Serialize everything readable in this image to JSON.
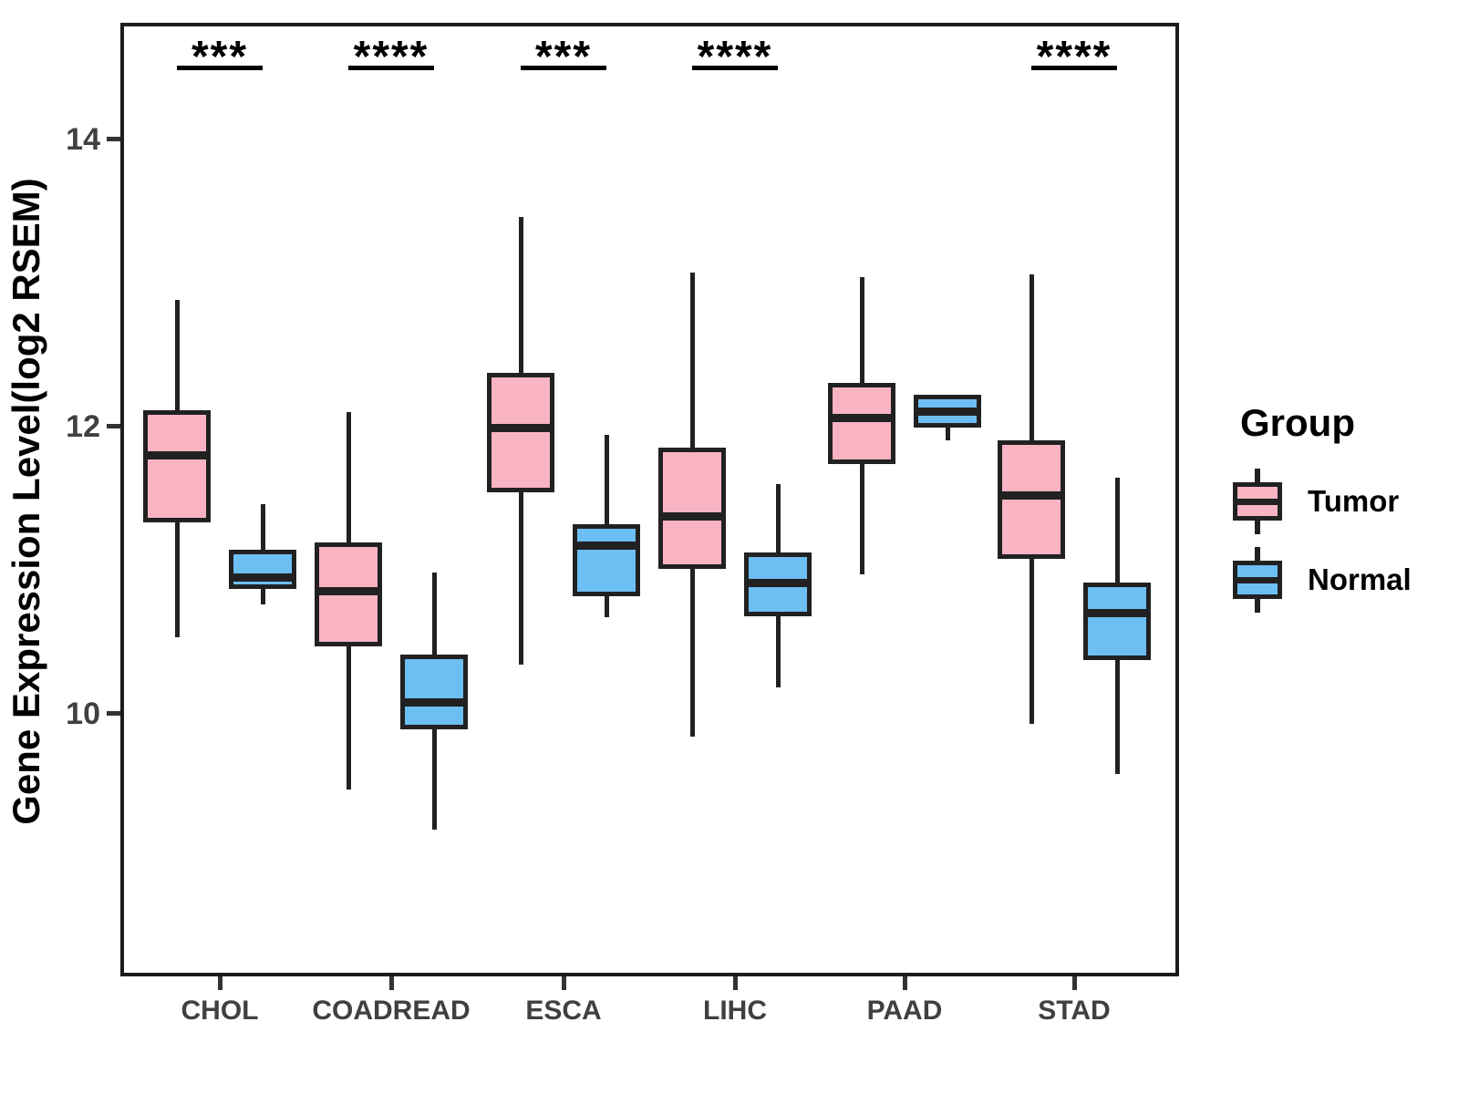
{
  "y_axis": {
    "title": "Gene Expression Level(log2 RSEM)",
    "tick_labels": [
      "14",
      "12",
      "10"
    ]
  },
  "legend": {
    "title": "Group",
    "items": [
      {
        "label": "Tumor",
        "color": "#F9B4C3"
      },
      {
        "label": "Normal",
        "color": "#6DBEF3"
      }
    ]
  },
  "colors": {
    "tumor_fill": "#F9B4C3",
    "normal_fill": "#6DBEF3",
    "line": "#212121",
    "axis_text": "#404040"
  },
  "chart_data": {
    "type": "boxplot",
    "title": "",
    "xlabel": "",
    "ylabel": "Gene Expression Level(log2 RSEM)",
    "categories": [
      "CHOL",
      "COADREAD",
      "ESCA",
      "LIHC",
      "PAAD",
      "STAD"
    ],
    "groups": [
      "Tumor",
      "Normal"
    ],
    "ylim": [
      8.17,
      14.81
    ],
    "yticks": [
      10,
      12,
      14
    ],
    "grid": false,
    "legend_position": "right",
    "significance": [
      "***",
      "****",
      "***",
      "****",
      null,
      "****"
    ],
    "series": [
      {
        "name": "Tumor",
        "color": "#F9B4C3",
        "boxes": [
          {
            "category": "CHOL",
            "whisker_low": 10.53,
            "q1": 11.33,
            "median": 11.8,
            "q3": 12.11,
            "whisker_high": 12.88
          },
          {
            "category": "COADREAD",
            "whisker_low": 9.47,
            "q1": 10.47,
            "median": 10.85,
            "q3": 11.19,
            "whisker_high": 12.1
          },
          {
            "category": "ESCA",
            "whisker_low": 10.34,
            "q1": 11.54,
            "median": 11.99,
            "q3": 12.37,
            "whisker_high": 13.46
          },
          {
            "category": "LIHC",
            "whisker_low": 9.84,
            "q1": 11.01,
            "median": 11.37,
            "q3": 11.85,
            "whisker_high": 13.07
          },
          {
            "category": "PAAD",
            "whisker_low": 10.97,
            "q1": 11.74,
            "median": 12.06,
            "q3": 12.3,
            "whisker_high": 13.04
          },
          {
            "category": "STAD",
            "whisker_low": 9.93,
            "q1": 11.08,
            "median": 11.52,
            "q3": 11.9,
            "whisker_high": 13.06
          }
        ]
      },
      {
        "name": "Normal",
        "color": "#6DBEF3",
        "boxes": [
          {
            "category": "CHOL",
            "whisker_low": 10.76,
            "q1": 10.87,
            "median": 10.95,
            "q3": 11.14,
            "whisker_high": 11.46
          },
          {
            "category": "COADREAD",
            "whisker_low": 9.19,
            "q1": 9.89,
            "median": 10.08,
            "q3": 10.41,
            "whisker_high": 10.98
          },
          {
            "category": "ESCA",
            "whisker_low": 10.67,
            "q1": 10.82,
            "median": 11.17,
            "q3": 11.32,
            "whisker_high": 11.94
          },
          {
            "category": "LIHC",
            "whisker_low": 10.18,
            "q1": 10.68,
            "median": 10.91,
            "q3": 11.12,
            "whisker_high": 11.6
          },
          {
            "category": "PAAD",
            "whisker_low": 11.9,
            "q1": 11.99,
            "median": 12.1,
            "q3": 12.22,
            "whisker_high": 12.22
          },
          {
            "category": "STAD",
            "whisker_low": 9.58,
            "q1": 10.37,
            "median": 10.7,
            "q3": 10.91,
            "whisker_high": 11.64
          }
        ]
      }
    ]
  }
}
